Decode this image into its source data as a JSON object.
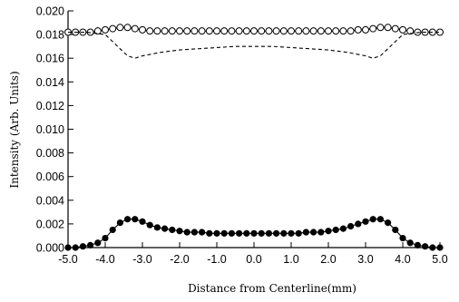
{
  "chart_data": {
    "type": "line",
    "xlabel": "Distance from Centerline(mm)",
    "ylabel": "Intensity (Arb. Units)",
    "xlim": [
      -5.0,
      5.0
    ],
    "ylim": [
      0.0,
      0.02
    ],
    "grid": false,
    "x_ticks": [
      "-5.0",
      "-4.0",
      "-3.0",
      "-2.0",
      "-1.0",
      "0.0",
      "1.0",
      "2.0",
      "3.0",
      "4.0",
      "5.0"
    ],
    "y_ticks": [
      "0.000",
      "0.002",
      "0.004",
      "0.006",
      "0.008",
      "0.010",
      "0.012",
      "0.014",
      "0.016",
      "0.018",
      "0.020"
    ],
    "series": [
      {
        "style": "open-circle-line",
        "x": [
          -5.0,
          -4.8,
          -4.6,
          -4.4,
          -4.2,
          -4.0,
          -3.8,
          -3.6,
          -3.4,
          -3.2,
          -3.0,
          -2.8,
          -2.6,
          -2.4,
          -2.2,
          -2.0,
          -1.8,
          -1.6,
          -1.4,
          -1.2,
          -1.0,
          -0.8,
          -0.6,
          -0.4,
          -0.2,
          0.0,
          0.2,
          0.4,
          0.6,
          0.8,
          1.0,
          1.2,
          1.4,
          1.6,
          1.8,
          2.0,
          2.2,
          2.4,
          2.6,
          2.8,
          3.0,
          3.2,
          3.4,
          3.6,
          3.8,
          4.0,
          4.2,
          4.4,
          4.6,
          4.8,
          5.0
        ],
        "y": [
          0.0182,
          0.0182,
          0.0182,
          0.0182,
          0.0183,
          0.0184,
          0.0185,
          0.0186,
          0.0186,
          0.0185,
          0.0184,
          0.0183,
          0.0183,
          0.0183,
          0.0183,
          0.0183,
          0.0183,
          0.0183,
          0.0183,
          0.0183,
          0.0183,
          0.0183,
          0.0183,
          0.0183,
          0.0183,
          0.0183,
          0.0183,
          0.0183,
          0.0183,
          0.0183,
          0.0183,
          0.0183,
          0.0183,
          0.0183,
          0.0183,
          0.0183,
          0.0183,
          0.0183,
          0.0183,
          0.0184,
          0.0184,
          0.0185,
          0.0186,
          0.0186,
          0.0185,
          0.0184,
          0.0183,
          0.0182,
          0.0182,
          0.0182,
          0.0182
        ]
      },
      {
        "style": "dashed-line",
        "x": [
          -5.0,
          -4.5,
          -4.0,
          -3.7,
          -3.4,
          -3.2,
          -3.0,
          -2.5,
          -2.0,
          -1.5,
          -1.0,
          -0.5,
          0.0,
          0.5,
          1.0,
          1.5,
          2.0,
          2.5,
          3.0,
          3.2,
          3.4,
          3.7,
          4.0,
          4.5,
          5.0
        ],
        "y": [
          0.0182,
          0.0182,
          0.018,
          0.0171,
          0.0162,
          0.016,
          0.0162,
          0.0165,
          0.0167,
          0.0168,
          0.0169,
          0.017,
          0.017,
          0.017,
          0.0169,
          0.0168,
          0.0167,
          0.0165,
          0.0162,
          0.016,
          0.0162,
          0.0171,
          0.018,
          0.0182,
          0.0182
        ]
      },
      {
        "style": "filled-circle-line",
        "x": [
          -5.0,
          -4.8,
          -4.6,
          -4.4,
          -4.2,
          -4.0,
          -3.8,
          -3.6,
          -3.4,
          -3.2,
          -3.0,
          -2.8,
          -2.6,
          -2.4,
          -2.2,
          -2.0,
          -1.8,
          -1.6,
          -1.4,
          -1.2,
          -1.0,
          -0.8,
          -0.6,
          -0.4,
          -0.2,
          0.0,
          0.2,
          0.4,
          0.6,
          0.8,
          1.0,
          1.2,
          1.4,
          1.6,
          1.8,
          2.0,
          2.2,
          2.4,
          2.6,
          2.8,
          3.0,
          3.2,
          3.4,
          3.6,
          3.8,
          4.0,
          4.2,
          4.4,
          4.6,
          4.8,
          5.0
        ],
        "y": [
          0.0,
          0.0,
          0.0001,
          0.0002,
          0.0004,
          0.0008,
          0.0015,
          0.0021,
          0.0024,
          0.0024,
          0.0022,
          0.0019,
          0.0017,
          0.0016,
          0.0015,
          0.0014,
          0.0013,
          0.0013,
          0.0013,
          0.0012,
          0.0012,
          0.0012,
          0.0012,
          0.0012,
          0.0012,
          0.0012,
          0.0012,
          0.0012,
          0.0012,
          0.0012,
          0.0012,
          0.0012,
          0.0013,
          0.0013,
          0.0013,
          0.0014,
          0.0015,
          0.0016,
          0.0018,
          0.002,
          0.0022,
          0.0024,
          0.0024,
          0.0021,
          0.0015,
          0.0008,
          0.0004,
          0.0002,
          0.0001,
          0.0,
          0.0
        ]
      }
    ]
  }
}
